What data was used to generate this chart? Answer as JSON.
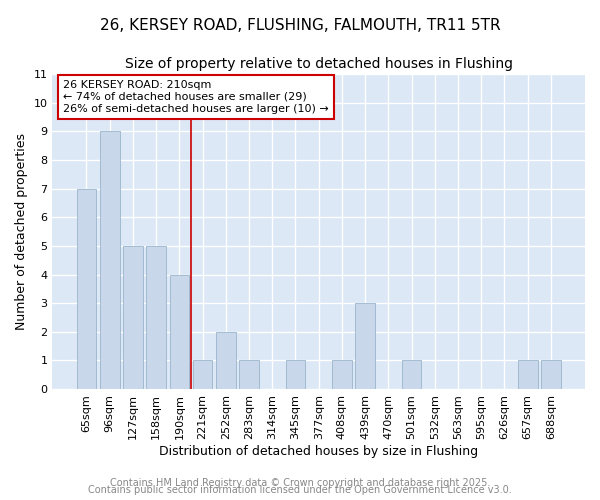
{
  "title_line1": "26, KERSEY ROAD, FLUSHING, FALMOUTH, TR11 5TR",
  "title_line2": "Size of property relative to detached houses in Flushing",
  "xlabel": "Distribution of detached houses by size in Flushing",
  "ylabel": "Number of detached properties",
  "categories": [
    "65sqm",
    "96sqm",
    "127sqm",
    "158sqm",
    "190sqm",
    "221sqm",
    "252sqm",
    "283sqm",
    "314sqm",
    "345sqm",
    "377sqm",
    "408sqm",
    "439sqm",
    "470sqm",
    "501sqm",
    "532sqm",
    "563sqm",
    "595sqm",
    "626sqm",
    "657sqm",
    "688sqm"
  ],
  "values": [
    7,
    9,
    5,
    5,
    4,
    1,
    2,
    1,
    0,
    1,
    0,
    1,
    3,
    0,
    1,
    0,
    0,
    0,
    0,
    1,
    1
  ],
  "bar_color": "#c8d8ea",
  "bar_edge_color": "#9bb5cc",
  "plot_bg_color": "#dce8f5",
  "fig_bg_color": "#ffffff",
  "grid_color": "#ffffff",
  "redline_x": 4.5,
  "annotation_text": "26 KERSEY ROAD: 210sqm\n← 74% of detached houses are smaller (29)\n26% of semi-detached houses are larger (10) →",
  "annotation_box_color": "white",
  "annotation_box_edge_color": "#cc0000",
  "redline_color": "#cc0000",
  "ylim": [
    0,
    11
  ],
  "yticks": [
    0,
    1,
    2,
    3,
    4,
    5,
    6,
    7,
    8,
    9,
    10,
    11
  ],
  "footnote_line1": "Contains HM Land Registry data © Crown copyright and database right 2025.",
  "footnote_line2": "Contains public sector information licensed under the Open Government Licence v3.0.",
  "footnote_color": "#888888",
  "title_fontsize": 11,
  "subtitle_fontsize": 10,
  "xlabel_fontsize": 9,
  "ylabel_fontsize": 9,
  "tick_fontsize": 8,
  "annotation_fontsize": 8,
  "footnote_fontsize": 7
}
